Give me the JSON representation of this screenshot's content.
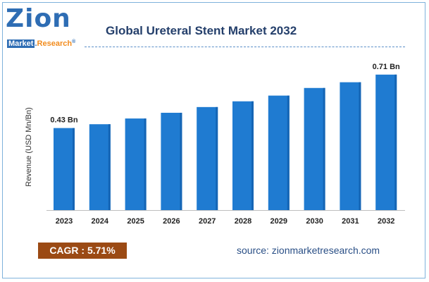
{
  "logo": {
    "brand": "Zion",
    "market": "Market",
    "dot": ".",
    "research": "Research",
    "reg": "®"
  },
  "colors": {
    "bar": "#1f7bd1",
    "bar_dark": "#1565b5",
    "title": "#243f6b",
    "cagr_bg": "#9b4a14"
  },
  "footer": {
    "cagr": "CAGR : 5.71%",
    "source": "source: zionmarketresearch.com"
  },
  "chart_data": {
    "type": "bar",
    "title": "Global Ureteral Stent Market 2032",
    "xlabel": "",
    "ylabel": "Revenue (USD Mn/Bn)",
    "categories": [
      "2023",
      "2024",
      "2025",
      "2026",
      "2027",
      "2028",
      "2029",
      "2030",
      "2031",
      "2032"
    ],
    "values": [
      0.43,
      0.45,
      0.48,
      0.51,
      0.54,
      0.57,
      0.6,
      0.64,
      0.67,
      0.71
    ],
    "data_labels": [
      {
        "index": 0,
        "text": "0.43 Bn"
      },
      {
        "index": 9,
        "text": "0.71 Bn"
      }
    ],
    "ylim": [
      0,
      0.75
    ],
    "grid": false,
    "legend": "none"
  }
}
